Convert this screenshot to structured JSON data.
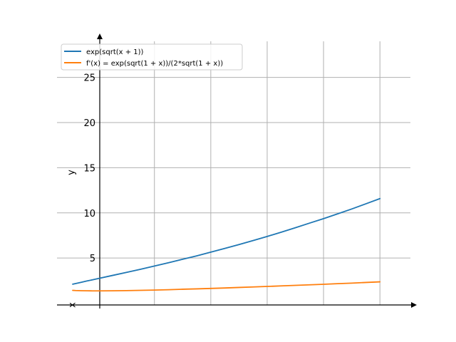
{
  "chart_data": {
    "type": "line",
    "title": "",
    "xlabel": "x",
    "ylabel": "y",
    "xlim": [
      -0.45,
      5.25
    ],
    "ylim": [
      -0.2,
      29
    ],
    "yticks": [
      5,
      10,
      15,
      20,
      25
    ],
    "xgrid": [
      1,
      2,
      3,
      4,
      5
    ],
    "grid": true,
    "legend_position": "top-left",
    "x_samples": [
      -0.45,
      -0.4,
      -0.3,
      -0.2,
      -0.1,
      0,
      0.25,
      0.5,
      0.75,
      1,
      1.25,
      1.5,
      1.75,
      2,
      2.25,
      2.5,
      2.75,
      3,
      3.25,
      3.5,
      3.75,
      4,
      4.25,
      4.5,
      4.75,
      5
    ],
    "series": [
      {
        "name": "exp(sqrt(x + 1))",
        "color": "#1f77b4",
        "values": [
          2.1,
          2.17,
          2.31,
          2.45,
          2.58,
          2.72,
          3.06,
          3.4,
          3.75,
          4.11,
          4.48,
          4.86,
          5.24,
          5.65,
          6.06,
          6.49,
          6.93,
          7.39,
          7.86,
          8.35,
          8.86,
          9.36,
          9.89,
          10.43,
          11.0,
          11.58
        ]
      },
      {
        "name": "f'(x) = exp(sqrt(1 + x))/(2*sqrt(1 + x))",
        "color": "#ff7f0e",
        "values": [
          1.42,
          1.4,
          1.38,
          1.37,
          1.36,
          1.36,
          1.37,
          1.39,
          1.42,
          1.45,
          1.49,
          1.54,
          1.58,
          1.63,
          1.68,
          1.74,
          1.79,
          1.85,
          1.91,
          1.97,
          2.03,
          2.09,
          2.16,
          2.22,
          2.29,
          2.36
        ]
      }
    ]
  }
}
